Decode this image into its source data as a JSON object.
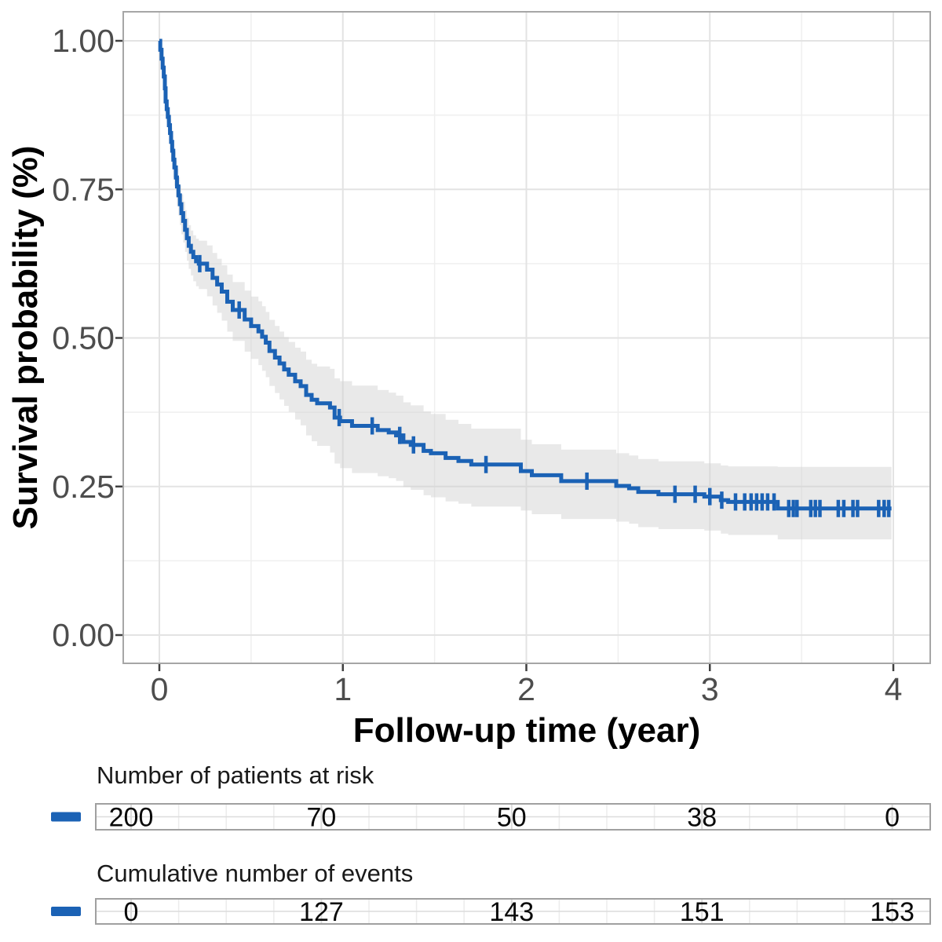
{
  "colors": {
    "background": "#ffffff",
    "curve_blue": "#1b62b5",
    "ci_band": "#cfcfcf",
    "grid_major": "#e3e3e3",
    "grid_minor": "#efefef",
    "panel_border": "#a6a6a6",
    "tick_mark": "#404040",
    "tick_label": "#4d4d4d",
    "title_text": "#000000",
    "table_text": "#0a0a0a",
    "table_grid_major": "#dcdcdc",
    "table_grid_minor": "#ececec",
    "table_border": "#a0a0a0"
  },
  "plot": {
    "y_axis_title": "Survival probability (%)",
    "x_axis_title": "Follow-up time (year)",
    "x_tick_labels": [
      "0",
      "1",
      "2",
      "3",
      "4"
    ],
    "y_tick_labels": [
      "1.00",
      "0.75",
      "0.50",
      "0.25",
      "0.00"
    ]
  },
  "tables": [
    {
      "id": "risk",
      "title": "Number of patients at risk",
      "values": [
        "200",
        "70",
        "50",
        "38",
        "0"
      ],
      "marker": "blue-dash"
    },
    {
      "id": "events",
      "title": "Cumulative number of events",
      "values": [
        "0",
        "127",
        "143",
        "151",
        "153"
      ],
      "marker": "blue-dash"
    }
  ],
  "chart_data": {
    "type": "line",
    "subtype": "kaplan-meier-step",
    "title": "",
    "xlabel": "Follow-up time (year)",
    "ylabel": "Survival probability (%)",
    "xlim": [
      0,
      4
    ],
    "ylim": [
      0,
      1
    ],
    "x_breaks": [
      0,
      1,
      2,
      3,
      4
    ],
    "x_minor_breaks": [
      0.5,
      1.5,
      2.5,
      3.5
    ],
    "y_breaks": [
      0,
      0.25,
      0.5,
      0.75,
      1.0
    ],
    "y_minor_breaks": [
      0.125,
      0.375,
      0.625,
      0.875
    ],
    "grid": true,
    "legend": "none",
    "end_time": 3.99,
    "km_steps": [
      [
        0.0,
        1.0
      ],
      [
        0.005,
        0.985
      ],
      [
        0.012,
        0.97
      ],
      [
        0.018,
        0.955
      ],
      [
        0.024,
        0.94
      ],
      [
        0.03,
        0.92
      ],
      [
        0.034,
        0.898
      ],
      [
        0.04,
        0.885
      ],
      [
        0.046,
        0.872
      ],
      [
        0.052,
        0.858
      ],
      [
        0.058,
        0.845
      ],
      [
        0.064,
        0.83
      ],
      [
        0.07,
        0.815
      ],
      [
        0.076,
        0.8
      ],
      [
        0.082,
        0.787
      ],
      [
        0.09,
        0.77
      ],
      [
        0.096,
        0.755
      ],
      [
        0.104,
        0.74
      ],
      [
        0.112,
        0.725
      ],
      [
        0.12,
        0.71
      ],
      [
        0.13,
        0.697
      ],
      [
        0.14,
        0.682
      ],
      [
        0.15,
        0.668
      ],
      [
        0.16,
        0.655
      ],
      [
        0.172,
        0.645
      ],
      [
        0.185,
        0.636
      ],
      [
        0.2,
        0.629
      ],
      [
        0.215,
        0.625
      ],
      [
        0.26,
        0.615
      ],
      [
        0.29,
        0.601
      ],
      [
        0.315,
        0.59
      ],
      [
        0.34,
        0.578
      ],
      [
        0.37,
        0.561
      ],
      [
        0.4,
        0.547
      ],
      [
        0.465,
        0.531
      ],
      [
        0.5,
        0.52
      ],
      [
        0.54,
        0.511
      ],
      [
        0.56,
        0.502
      ],
      [
        0.58,
        0.492
      ],
      [
        0.6,
        0.478
      ],
      [
        0.63,
        0.467
      ],
      [
        0.655,
        0.457
      ],
      [
        0.68,
        0.447
      ],
      [
        0.705,
        0.438
      ],
      [
        0.74,
        0.427
      ],
      [
        0.77,
        0.419
      ],
      [
        0.8,
        0.404
      ],
      [
        0.83,
        0.396
      ],
      [
        0.86,
        0.39
      ],
      [
        0.93,
        0.383
      ],
      [
        0.955,
        0.366
      ],
      [
        0.985,
        0.36
      ],
      [
        1.05,
        0.352
      ],
      [
        1.19,
        0.345
      ],
      [
        1.25,
        0.341
      ],
      [
        1.29,
        0.336
      ],
      [
        1.33,
        0.325
      ],
      [
        1.37,
        0.32
      ],
      [
        1.44,
        0.31
      ],
      [
        1.48,
        0.306
      ],
      [
        1.56,
        0.298
      ],
      [
        1.63,
        0.293
      ],
      [
        1.7,
        0.287
      ],
      [
        1.97,
        0.276
      ],
      [
        2.03,
        0.269
      ],
      [
        2.19,
        0.259
      ],
      [
        2.49,
        0.251
      ],
      [
        2.56,
        0.247
      ],
      [
        2.61,
        0.241
      ],
      [
        2.72,
        0.237
      ],
      [
        2.97,
        0.233
      ],
      [
        3.06,
        0.227
      ],
      [
        3.1,
        0.224
      ],
      [
        3.37,
        0.213
      ],
      [
        3.99,
        0.213
      ]
    ],
    "censor_times": [
      0.22,
      0.435,
      0.98,
      1.16,
      1.31,
      1.385,
      1.78,
      2.33,
      2.81,
      2.92,
      3.0,
      3.065,
      3.14,
      3.19,
      3.225,
      3.255,
      3.285,
      3.315,
      3.35,
      3.43,
      3.455,
      3.475,
      3.55,
      3.575,
      3.6,
      3.7,
      3.73,
      3.78,
      3.805,
      3.92,
      3.95,
      3.975
    ],
    "ci_offsets": [
      [
        0.0,
        0.0,
        0.0
      ],
      [
        0.02,
        0.012,
        0.014
      ],
      [
        0.05,
        0.022,
        0.026
      ],
      [
        0.1,
        0.03,
        0.034
      ],
      [
        0.2,
        0.038,
        0.042
      ],
      [
        0.4,
        0.047,
        0.052
      ],
      [
        0.7,
        0.055,
        0.062
      ],
      [
        1.0,
        0.068,
        0.08
      ],
      [
        1.5,
        0.066,
        0.074
      ],
      [
        2.0,
        0.052,
        0.066
      ],
      [
        2.5,
        0.055,
        0.06
      ],
      [
        3.0,
        0.056,
        0.057
      ],
      [
        3.37,
        0.07,
        0.052
      ],
      [
        4.0,
        0.07,
        0.052
      ]
    ],
    "at_risk": {
      "times": [
        0,
        1,
        2,
        3,
        4
      ],
      "values": [
        200,
        70,
        50,
        38,
        0
      ]
    },
    "cum_events": {
      "times": [
        0,
        1,
        2,
        3,
        4
      ],
      "values": [
        0,
        127,
        143,
        151,
        153
      ]
    }
  }
}
